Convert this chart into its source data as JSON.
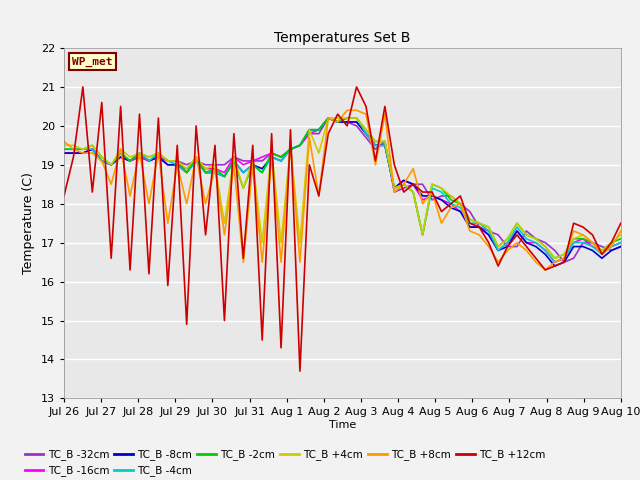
{
  "title": "Temperatures Set B",
  "xlabel": "Time",
  "ylabel": "Temperature (C)",
  "ylim": [
    13.0,
    22.0
  ],
  "yticks": [
    13.0,
    14.0,
    15.0,
    16.0,
    17.0,
    18.0,
    19.0,
    20.0,
    21.0,
    22.0
  ],
  "background_color": "#f2f2f2",
  "plot_bg_color": "#e8e8e8",
  "annotation_text": "WP_met",
  "annotation_box_color": "#ffffcc",
  "annotation_border_color": "#800000",
  "series_colors": {
    "TC_B -32cm": "#9933cc",
    "TC_B -16cm": "#ff00ff",
    "TC_B -8cm": "#0000cc",
    "TC_B -4cm": "#00cccc",
    "TC_B -2cm": "#00cc00",
    "TC_B +4cm": "#cccc00",
    "TC_B +8cm": "#ff9900",
    "TC_B +12cm": "#cc0000"
  },
  "x_tick_labels": [
    "Jul 26",
    "Jul 27",
    "Jul 28",
    "Jul 29",
    "Jul 30",
    "Jul 31",
    "Aug 1",
    "Aug 2",
    "Aug 3",
    "Aug 4",
    "Aug 5",
    "Aug 6",
    "Aug 7",
    "Aug 8",
    "Aug 9",
    "Aug 10"
  ],
  "x_tick_positions": [
    0,
    1,
    2,
    3,
    4,
    5,
    6,
    7,
    8,
    9,
    10,
    11,
    12,
    13,
    14,
    15
  ],
  "red_data": [
    18.2,
    19.2,
    21.0,
    18.3,
    20.6,
    16.6,
    20.5,
    16.3,
    20.3,
    16.2,
    20.2,
    15.9,
    19.5,
    14.9,
    20.0,
    17.2,
    19.5,
    15.0,
    19.8,
    16.6,
    19.5,
    14.5,
    19.8,
    14.3,
    19.9,
    13.7,
    19.0,
    18.2,
    19.8,
    20.3,
    20.0,
    21.0,
    20.5,
    19.1,
    20.5,
    19.0,
    18.3,
    18.5,
    18.3,
    18.3,
    17.8,
    18.0,
    18.2,
    17.5,
    17.4,
    17.0,
    16.4,
    16.9,
    17.2,
    16.9,
    16.6,
    16.3,
    16.4,
    16.5,
    17.5,
    17.4,
    17.2,
    16.7,
    17.0,
    17.5
  ],
  "orange_data": [
    19.6,
    19.4,
    19.3,
    19.3,
    19.1,
    18.5,
    19.4,
    18.2,
    19.3,
    18.0,
    19.3,
    17.5,
    19.0,
    18.0,
    19.2,
    18.0,
    18.9,
    17.2,
    19.0,
    16.5,
    19.0,
    16.5,
    19.2,
    16.5,
    19.5,
    16.5,
    19.7,
    18.2,
    20.2,
    20.1,
    20.4,
    20.4,
    20.3,
    19.0,
    20.3,
    18.3,
    18.5,
    18.9,
    18.0,
    18.3,
    17.5,
    17.9,
    18.0,
    17.3,
    17.2,
    16.9,
    16.5,
    16.8,
    17.0,
    16.8,
    16.5,
    16.3,
    16.5,
    16.6,
    17.3,
    17.2,
    17.0,
    16.7,
    16.9,
    17.3
  ],
  "purple_data": [
    19.3,
    19.3,
    19.3,
    19.4,
    19.1,
    19.0,
    19.2,
    19.1,
    19.2,
    19.1,
    19.2,
    19.1,
    19.1,
    19.0,
    19.1,
    19.0,
    19.0,
    19.0,
    19.2,
    19.1,
    19.1,
    19.1,
    19.3,
    19.2,
    19.4,
    19.5,
    19.8,
    19.8,
    20.2,
    20.1,
    20.1,
    20.0,
    19.7,
    19.4,
    19.6,
    18.3,
    18.4,
    18.5,
    18.5,
    18.1,
    18.2,
    18.2,
    18.0,
    17.8,
    17.4,
    17.3,
    17.2,
    16.9,
    16.9,
    17.3,
    17.1,
    17.0,
    16.8,
    16.5,
    16.6,
    17.0,
    17.0,
    16.9,
    16.8,
    16.9
  ],
  "magenta_data": [
    19.3,
    19.3,
    19.3,
    19.4,
    19.1,
    19.0,
    19.2,
    19.1,
    19.2,
    19.1,
    19.2,
    19.0,
    19.0,
    18.9,
    19.1,
    18.9,
    18.9,
    18.8,
    19.2,
    19.0,
    19.1,
    19.2,
    19.3,
    19.2,
    19.4,
    19.5,
    19.8,
    19.9,
    20.2,
    20.1,
    20.1,
    20.1,
    19.8,
    19.5,
    19.5,
    18.4,
    18.6,
    18.5,
    18.1,
    18.2,
    18.1,
    18.0,
    17.8,
    17.4,
    17.4,
    17.2,
    16.8,
    17.0,
    17.3,
    17.0,
    17.0,
    16.8,
    16.5,
    16.6,
    17.0,
    17.1,
    16.9,
    16.8,
    16.9,
    17.0
  ],
  "dark_blue_data": [
    19.3,
    19.3,
    19.3,
    19.4,
    19.1,
    19.0,
    19.2,
    19.1,
    19.3,
    19.1,
    19.2,
    19.0,
    19.0,
    18.8,
    19.1,
    18.8,
    18.8,
    18.7,
    19.1,
    18.8,
    19.0,
    18.9,
    19.2,
    19.1,
    19.4,
    19.5,
    19.9,
    19.9,
    20.2,
    20.1,
    20.1,
    20.1,
    19.8,
    19.5,
    19.5,
    18.4,
    18.6,
    18.5,
    18.2,
    18.2,
    18.1,
    17.9,
    17.8,
    17.4,
    17.4,
    17.2,
    16.8,
    16.9,
    17.3,
    17.0,
    16.9,
    16.7,
    16.4,
    16.5,
    16.9,
    16.9,
    16.8,
    16.6,
    16.8,
    16.9
  ],
  "cyan_data": [
    19.4,
    19.4,
    19.4,
    19.4,
    19.1,
    19.0,
    19.3,
    19.1,
    19.3,
    19.1,
    19.3,
    19.1,
    19.0,
    18.8,
    19.1,
    18.8,
    18.8,
    18.7,
    19.1,
    18.8,
    19.0,
    18.8,
    19.2,
    19.1,
    19.4,
    19.5,
    19.9,
    19.9,
    20.2,
    20.1,
    20.2,
    20.2,
    19.8,
    19.5,
    19.5,
    18.4,
    18.5,
    18.3,
    17.2,
    18.4,
    18.3,
    18.0,
    17.9,
    17.5,
    17.5,
    17.3,
    16.8,
    17.0,
    17.4,
    17.1,
    17.0,
    16.8,
    16.5,
    16.6,
    17.0,
    17.0,
    16.9,
    16.7,
    16.9,
    17.0
  ],
  "green_data": [
    19.4,
    19.4,
    19.4,
    19.5,
    19.2,
    19.0,
    19.3,
    19.1,
    19.3,
    19.2,
    19.3,
    19.1,
    19.1,
    18.8,
    19.2,
    18.8,
    18.9,
    18.7,
    19.1,
    18.4,
    19.0,
    18.8,
    19.3,
    19.2,
    19.4,
    19.5,
    19.9,
    19.9,
    20.2,
    20.1,
    20.2,
    20.2,
    19.9,
    19.6,
    19.6,
    18.4,
    18.5,
    18.3,
    17.2,
    18.5,
    18.4,
    18.1,
    18.0,
    17.6,
    17.5,
    17.4,
    16.9,
    17.1,
    17.5,
    17.2,
    17.1,
    16.9,
    16.6,
    16.7,
    17.1,
    17.1,
    17.0,
    16.8,
    17.0,
    17.1
  ],
  "yellow_data": [
    19.5,
    19.5,
    19.4,
    19.5,
    19.2,
    19.0,
    19.4,
    19.2,
    19.3,
    19.2,
    19.3,
    19.1,
    19.1,
    18.9,
    19.2,
    18.9,
    19.0,
    17.5,
    19.2,
    18.4,
    19.1,
    17.0,
    19.4,
    17.0,
    19.5,
    17.0,
    19.9,
    19.3,
    20.2,
    20.2,
    20.2,
    20.2,
    19.9,
    19.6,
    19.6,
    18.4,
    18.5,
    18.3,
    17.2,
    18.5,
    18.4,
    18.2,
    18.0,
    17.6,
    17.5,
    17.4,
    16.9,
    17.1,
    17.5,
    17.2,
    17.1,
    16.9,
    16.6,
    16.7,
    17.1,
    17.2,
    17.0,
    16.8,
    17.0,
    17.2
  ]
}
